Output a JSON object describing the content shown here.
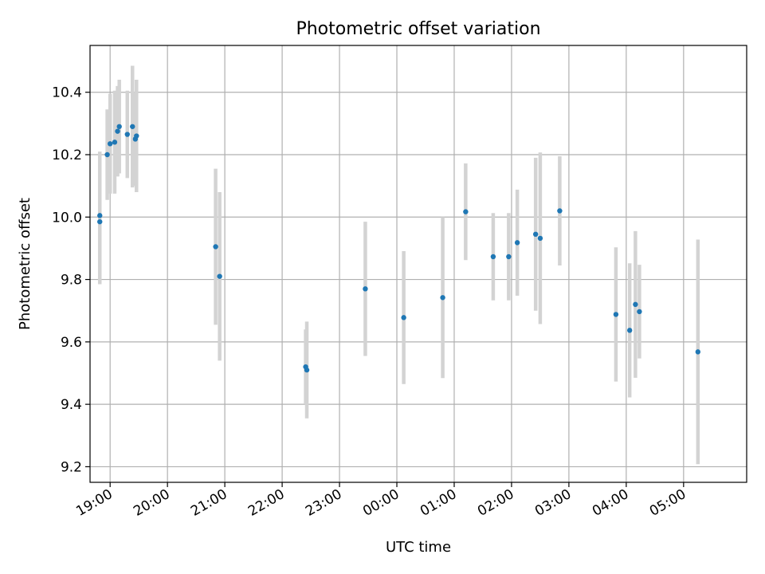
{
  "chart_data": {
    "type": "scatter",
    "title": "Photometric offset variation",
    "xlabel": "UTC time",
    "ylabel": "Photometric offset",
    "x_unit": "hours (UTC, continuing past midnight)",
    "xlim": [
      18.65,
      30.1
    ],
    "ylim": [
      9.15,
      10.55
    ],
    "grid": true,
    "x_ticks": [
      {
        "value": 19,
        "label": "19:00"
      },
      {
        "value": 20,
        "label": "20:00"
      },
      {
        "value": 21,
        "label": "21:00"
      },
      {
        "value": 22,
        "label": "22:00"
      },
      {
        "value": 23,
        "label": "23:00"
      },
      {
        "value": 24,
        "label": "00:00"
      },
      {
        "value": 25,
        "label": "01:00"
      },
      {
        "value": 26,
        "label": "02:00"
      },
      {
        "value": 27,
        "label": "03:00"
      },
      {
        "value": 28,
        "label": "04:00"
      },
      {
        "value": 29,
        "label": "05:00"
      }
    ],
    "y_ticks": [
      {
        "value": 9.2,
        "label": "9.2"
      },
      {
        "value": 9.4,
        "label": "9.4"
      },
      {
        "value": 9.6,
        "label": "9.6"
      },
      {
        "value": 9.8,
        "label": "9.8"
      },
      {
        "value": 10.0,
        "label": "10.0"
      },
      {
        "value": 10.2,
        "label": "10.2"
      },
      {
        "value": 10.4,
        "label": "10.4"
      }
    ],
    "series": [
      {
        "marker_color": "#1f77b4",
        "errorbar_color": "#d3d3d3",
        "points": [
          {
            "x": 18.82,
            "y": 10.005,
            "err": 0.205
          },
          {
            "x": 18.82,
            "y": 9.985,
            "err": 0.2
          },
          {
            "x": 18.95,
            "y": 10.2,
            "err": 0.145
          },
          {
            "x": 19.0,
            "y": 10.235,
            "err": 0.16
          },
          {
            "x": 19.08,
            "y": 10.24,
            "err": 0.165
          },
          {
            "x": 19.13,
            "y": 10.275,
            "err": 0.145
          },
          {
            "x": 19.16,
            "y": 10.29,
            "err": 0.15
          },
          {
            "x": 19.3,
            "y": 10.265,
            "err": 0.14
          },
          {
            "x": 19.39,
            "y": 10.29,
            "err": 0.195
          },
          {
            "x": 19.44,
            "y": 10.25,
            "err": 0.15
          },
          {
            "x": 19.46,
            "y": 10.26,
            "err": 0.18
          },
          {
            "x": 20.84,
            "y": 9.905,
            "err": 0.25
          },
          {
            "x": 20.91,
            "y": 9.81,
            "err": 0.27
          },
          {
            "x": 22.41,
            "y": 9.52,
            "err": 0.12
          },
          {
            "x": 22.43,
            "y": 9.51,
            "err": 0.155
          },
          {
            "x": 23.45,
            "y": 9.77,
            "err": 0.215
          },
          {
            "x": 24.12,
            "y": 9.678,
            "err": 0.213
          },
          {
            "x": 24.8,
            "y": 9.742,
            "err": 0.258
          },
          {
            "x": 25.2,
            "y": 10.017,
            "err": 0.155
          },
          {
            "x": 25.68,
            "y": 9.873,
            "err": 0.14
          },
          {
            "x": 25.95,
            "y": 9.873,
            "err": 0.14
          },
          {
            "x": 26.1,
            "y": 9.918,
            "err": 0.17
          },
          {
            "x": 26.42,
            "y": 9.945,
            "err": 0.245
          },
          {
            "x": 26.5,
            "y": 9.932,
            "err": 0.275
          },
          {
            "x": 26.84,
            "y": 10.02,
            "err": 0.175
          },
          {
            "x": 27.82,
            "y": 9.688,
            "err": 0.215
          },
          {
            "x": 28.06,
            "y": 9.637,
            "err": 0.215
          },
          {
            "x": 28.16,
            "y": 9.72,
            "err": 0.235
          },
          {
            "x": 28.23,
            "y": 9.697,
            "err": 0.15
          },
          {
            "x": 29.25,
            "y": 9.568,
            "err": 0.36
          }
        ]
      }
    ]
  }
}
